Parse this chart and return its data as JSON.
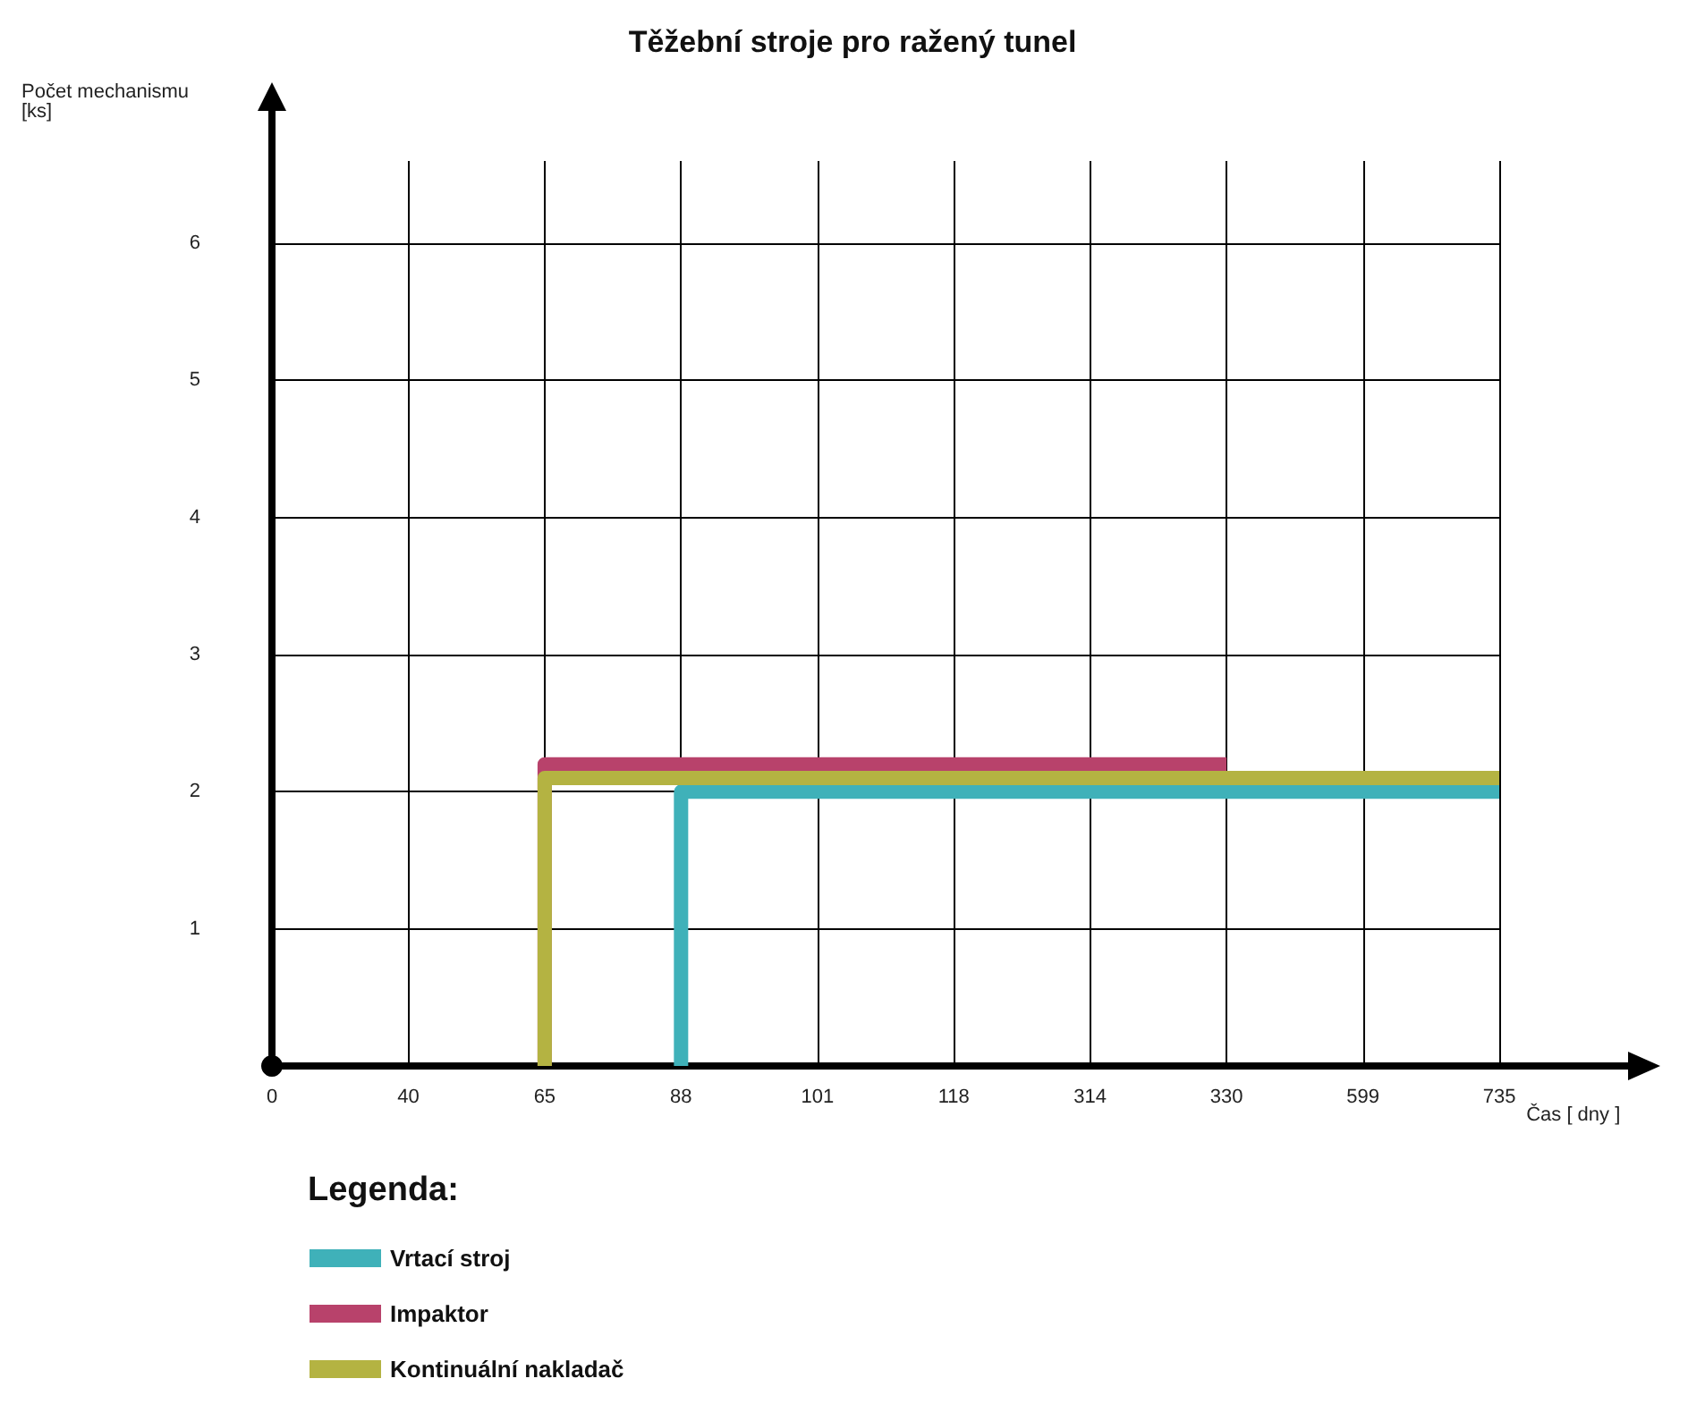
{
  "chart_data": {
    "type": "line",
    "title": "Těžební stroje pro ražený tunel",
    "xlabel": "Čas [ dny ]",
    "ylabel": "Počet mechanismu\n[ks]",
    "legend_title": "Legenda:",
    "categories": [
      "0",
      "40",
      "65",
      "88",
      "101",
      "118",
      "314",
      "330",
      "599",
      "735"
    ],
    "ylim": [
      0,
      6.6
    ],
    "yticks": [
      {
        "value": 0,
        "label": null
      },
      1,
      2,
      3,
      4,
      5,
      6
    ],
    "grid": true,
    "legend": "bottom left",
    "marker": "none",
    "line_style": "solid",
    "series": [
      {
        "name": "Vrtací stroj",
        "color": "#3fb1b9",
        "x": [
          "88",
          "88",
          "735"
        ],
        "values": [
          0,
          2,
          2
        ]
      },
      {
        "name": "Impaktor",
        "color": "#b8426b",
        "x": [
          "65",
          "65",
          "330"
        ],
        "values": [
          0,
          2.2,
          2.2
        ]
      },
      {
        "name": "Kontinuální nakladač",
        "color": "#b4b342",
        "x": [
          "65",
          "65",
          "735"
        ],
        "values": [
          0,
          2.1,
          2.1
        ]
      }
    ]
  }
}
